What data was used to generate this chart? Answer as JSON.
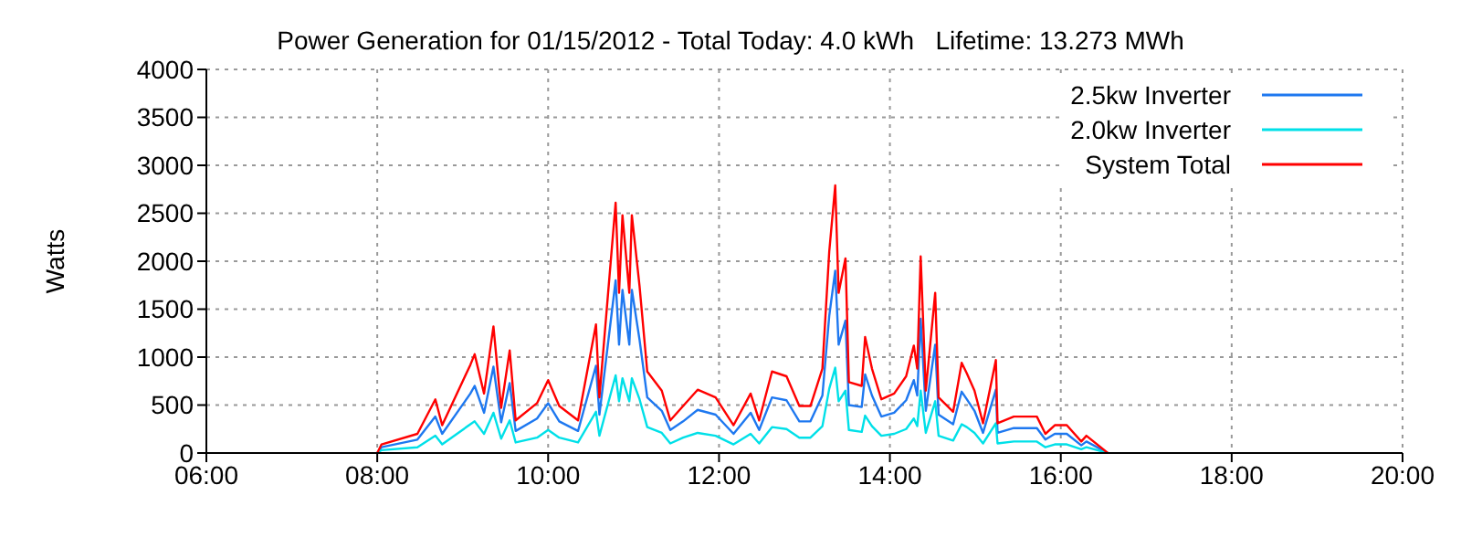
{
  "chart_data": {
    "type": "line",
    "title": "Power Generation for 01/15/2012 - Total Today: 4.0 kWh   Lifetime: 13.273 MWh",
    "ylabel": "Watts",
    "x": [
      8.0,
      8.05,
      8.47,
      8.68,
      8.76,
      9.09,
      9.14,
      9.25,
      9.36,
      9.45,
      9.55,
      9.62,
      9.87,
      10.0,
      10.13,
      10.35,
      10.56,
      10.6,
      10.79,
      10.83,
      10.87,
      10.95,
      10.98,
      11.07,
      11.16,
      11.33,
      11.43,
      11.58,
      11.75,
      11.96,
      12.17,
      12.37,
      12.47,
      12.62,
      12.79,
      12.94,
      13.07,
      13.21,
      13.29,
      13.36,
      13.4,
      13.48,
      13.52,
      13.67,
      13.71,
      13.79,
      13.9,
      14.05,
      14.19,
      14.28,
      14.32,
      14.36,
      14.42,
      14.53,
      14.57,
      14.74,
      14.84,
      14.9,
      14.99,
      15.09,
      15.24,
      15.26,
      15.45,
      15.72,
      15.82,
      15.93,
      16.07,
      16.24,
      16.3,
      16.55
    ],
    "series": [
      {
        "name": "2.5kw Inverter",
        "color": "#1e78f0",
        "values": [
          0,
          60,
          140,
          380,
          200,
          620,
          700,
          420,
          900,
          320,
          730,
          230,
          360,
          520,
          330,
          230,
          910,
          400,
          1800,
          1130,
          1700,
          1130,
          1700,
          1180,
          580,
          440,
          240,
          330,
          450,
          400,
          200,
          420,
          240,
          580,
          550,
          330,
          330,
          600,
          1430,
          1900,
          1130,
          1380,
          500,
          480,
          820,
          600,
          380,
          420,
          550,
          760,
          600,
          1400,
          440,
          1130,
          400,
          300,
          640,
          560,
          440,
          210,
          660,
          210,
          260,
          260,
          140,
          200,
          200,
          80,
          120,
          0
        ]
      },
      {
        "name": "2.0kw Inverter",
        "color": "#00e0e8",
        "values": [
          0,
          30,
          60,
          180,
          90,
          300,
          330,
          200,
          420,
          150,
          340,
          110,
          160,
          240,
          160,
          110,
          430,
          180,
          810,
          540,
          780,
          540,
          780,
          560,
          270,
          210,
          100,
          160,
          210,
          180,
          90,
          200,
          100,
          270,
          250,
          160,
          160,
          280,
          670,
          890,
          540,
          650,
          240,
          220,
          390,
          280,
          180,
          200,
          250,
          360,
          280,
          650,
          210,
          540,
          180,
          130,
          300,
          270,
          210,
          100,
          310,
          100,
          120,
          120,
          60,
          90,
          90,
          40,
          60,
          0
        ]
      },
      {
        "name": "System Total",
        "color": "#ff0000",
        "values": [
          0,
          90,
          200,
          560,
          290,
          920,
          1030,
          620,
          1320,
          470,
          1070,
          340,
          520,
          760,
          490,
          340,
          1340,
          580,
          2610,
          1670,
          2480,
          1670,
          2480,
          1740,
          850,
          650,
          340,
          490,
          660,
          580,
          290,
          620,
          340,
          850,
          800,
          490,
          490,
          880,
          2100,
          2790,
          1670,
          2030,
          740,
          700,
          1210,
          880,
          560,
          620,
          800,
          1120,
          880,
          2050,
          650,
          1670,
          580,
          430,
          940,
          830,
          650,
          310,
          970,
          310,
          380,
          380,
          200,
          290,
          290,
          120,
          180,
          0
        ]
      }
    ],
    "xlim": [
      6,
      20
    ],
    "xticks": [
      {
        "value": 6,
        "label": "06:00"
      },
      {
        "value": 8,
        "label": "08:00"
      },
      {
        "value": 10,
        "label": "10:00"
      },
      {
        "value": 12,
        "label": "12:00"
      },
      {
        "value": 14,
        "label": "14:00"
      },
      {
        "value": 16,
        "label": "16:00"
      },
      {
        "value": 18,
        "label": "18:00"
      },
      {
        "value": 20,
        "label": "20:00"
      }
    ],
    "ylim": [
      0,
      4000
    ],
    "yticks": [
      0,
      500,
      1000,
      1500,
      2000,
      2500,
      3000,
      3500,
      4000
    ],
    "grid": true,
    "legend": "top right",
    "marker": "none",
    "line_style": "solid"
  }
}
